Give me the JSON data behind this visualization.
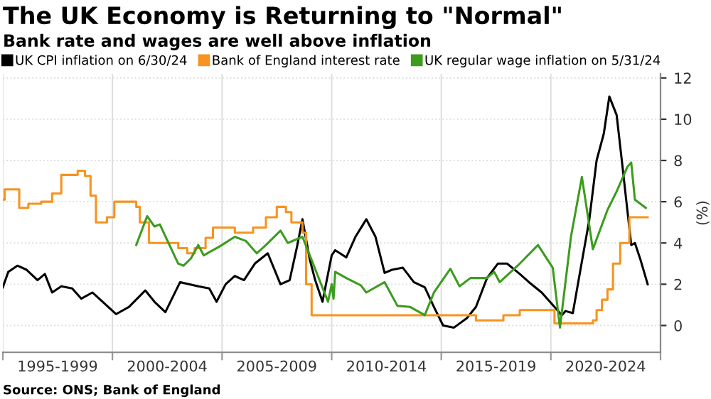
{
  "chart_data": {
    "type": "line",
    "title": "The UK Economy is Returning to \"Normal\"",
    "subtitle": "Bank rate and wages are well above inflation",
    "ylabel": "(%)",
    "legend": "top left",
    "grid": "xy",
    "annotations": [
      "Source: ONS; Bank of England"
    ],
    "xlim": [
      "1995-01",
      "2025-01"
    ],
    "ylim": [
      -1.3,
      12.2
    ],
    "yticks": [
      0,
      2,
      4,
      6,
      8,
      10,
      12
    ],
    "xticks": [
      {
        "value": "1995-01",
        "label": null
      },
      {
        "value": "1997-07",
        "label": "1995-1999"
      },
      {
        "value": "2000-01",
        "label": null
      },
      {
        "value": "2002-07",
        "label": "2000-2004"
      },
      {
        "value": "2005-01",
        "label": null
      },
      {
        "value": "2007-07",
        "label": "2005-2009"
      },
      {
        "value": "2010-01",
        "label": null
      },
      {
        "value": "2012-07",
        "label": "2010-2014"
      },
      {
        "value": "2015-01",
        "label": null
      },
      {
        "value": "2017-07",
        "label": "2015-2019"
      },
      {
        "value": "2020-01",
        "label": null
      },
      {
        "value": "2022-07",
        "label": "2020-2024"
      },
      {
        "value": "2025-01",
        "label": null
      }
    ],
    "series": [
      {
        "name": "UK CPI inflation on 6/30/24",
        "color": "#000000",
        "x": [
          "1995-01",
          "1995-04",
          "1995-09",
          "1996-02",
          "1996-08",
          "1996-12",
          "1997-04",
          "1997-09",
          "1998-03",
          "1998-08",
          "1999-02",
          "2000-03",
          "2000-10",
          "2001-07",
          "2001-12",
          "2002-06",
          "2003-02",
          "2003-12",
          "2004-06",
          "2004-10",
          "2005-03",
          "2005-08",
          "2006-01",
          "2006-07",
          "2007-02",
          "2007-09",
          "2008-02",
          "2008-06",
          "2008-09",
          "2009-01",
          "2009-04",
          "2009-08",
          "2010-01",
          "2010-03",
          "2010-09",
          "2011-02",
          "2011-08",
          "2012-01",
          "2012-06",
          "2012-10",
          "2013-04",
          "2013-10",
          "2014-04",
          "2014-09",
          "2015-02",
          "2015-08",
          "2016-03",
          "2016-08",
          "2017-02",
          "2017-08",
          "2018-01",
          "2018-08",
          "2019-01",
          "2019-08",
          "2020-03",
          "2020-07",
          "2020-09",
          "2021-01",
          "2021-04",
          "2021-10",
          "2022-02",
          "2022-06",
          "2022-09",
          "2023-01",
          "2023-04",
          "2023-09",
          "2023-11",
          "2024-02",
          "2024-06"
        ],
        "values": [
          1.85,
          2.6,
          2.9,
          2.7,
          2.2,
          2.5,
          1.6,
          1.9,
          1.8,
          1.3,
          1.6,
          0.55,
          0.9,
          1.7,
          1.15,
          0.65,
          2.1,
          1.9,
          1.8,
          1.15,
          2.0,
          2.4,
          2.2,
          3.0,
          3.5,
          2.0,
          2.2,
          3.8,
          5.15,
          3.2,
          2.2,
          1.15,
          3.4,
          3.65,
          3.3,
          4.3,
          5.15,
          4.3,
          2.55,
          2.7,
          2.8,
          2.1,
          1.85,
          0.9,
          0.0,
          -0.1,
          0.35,
          0.9,
          2.3,
          3.0,
          3.0,
          2.5,
          2.1,
          1.6,
          0.9,
          0.5,
          0.7,
          0.6,
          2.1,
          5.1,
          8.0,
          9.3,
          11.1,
          10.2,
          7.9,
          3.9,
          4.0,
          3.2,
          2.0
        ]
      },
      {
        "name": "Bank of England interest rate",
        "color": "#f7931e",
        "type": "step",
        "x": [
          "1995-01",
          "1995-02",
          "1995-10",
          "1996-03",
          "1996-10",
          "1997-04",
          "1997-09",
          "1998-06",
          "1998-10",
          "1999-01",
          "1999-04",
          "1999-10",
          "2000-02",
          "2001-02",
          "2001-04",
          "2001-09",
          "2003-01",
          "2003-06",
          "2003-10",
          "2004-04",
          "2004-08",
          "2005-08",
          "2006-06",
          "2007-01",
          "2007-07",
          "2007-12",
          "2008-03",
          "2008-09",
          "2008-11",
          "2009-02",
          "2016-08",
          "2017-11",
          "2018-08",
          "2020-03",
          "2021-12",
          "2022-02",
          "2022-05",
          "2022-08",
          "2022-11",
          "2023-03",
          "2023-08",
          "2024-06"
        ],
        "values": [
          6.1,
          6.6,
          5.7,
          5.9,
          6.0,
          6.4,
          7.3,
          7.5,
          7.25,
          6.3,
          5.0,
          5.25,
          6.0,
          5.75,
          5.0,
          4.0,
          3.75,
          3.5,
          3.75,
          4.25,
          4.75,
          4.5,
          4.75,
          5.25,
          5.75,
          5.5,
          5.0,
          4.5,
          2.0,
          0.5,
          0.25,
          0.5,
          0.75,
          0.1,
          0.25,
          0.75,
          1.25,
          1.75,
          3.0,
          4.0,
          5.25,
          5.25
        ]
      },
      {
        "name": "UK regular wage inflation on 5/31/24",
        "color": "#3c9c1e",
        "x": [
          "2001-02",
          "2001-08",
          "2001-12",
          "2002-03",
          "2003-01",
          "2003-04",
          "2003-08",
          "2003-12",
          "2004-03",
          "2004-12",
          "2005-08",
          "2006-02",
          "2006-08",
          "2007-01",
          "2007-09",
          "2008-01",
          "2008-09",
          "2009-01",
          "2009-11",
          "2010-01",
          "2010-02",
          "2010-03",
          "2010-09",
          "2011-05",
          "2011-08",
          "2012-06",
          "2013-01",
          "2013-08",
          "2014-04",
          "2014-09",
          "2015-06",
          "2015-11",
          "2016-05",
          "2017-02",
          "2017-06",
          "2017-09",
          "2018-08",
          "2019-06",
          "2020-02",
          "2020-06",
          "2020-12",
          "2021-06",
          "2021-12",
          "2022-08",
          "2023-01",
          "2023-07",
          "2023-09",
          "2023-11",
          "2024-05"
        ],
        "values": [
          3.9,
          5.3,
          4.8,
          4.9,
          3.0,
          2.9,
          3.25,
          3.9,
          3.4,
          3.85,
          4.3,
          4.1,
          3.5,
          3.9,
          4.6,
          4.0,
          4.3,
          3.4,
          1.15,
          2.0,
          1.3,
          2.6,
          2.3,
          1.95,
          1.6,
          2.1,
          0.95,
          0.9,
          0.5,
          1.6,
          2.75,
          1.9,
          2.3,
          2.3,
          2.6,
          2.1,
          3.0,
          3.9,
          2.8,
          -0.1,
          4.3,
          7.2,
          3.7,
          5.6,
          6.5,
          7.7,
          7.9,
          6.1,
          5.7
        ]
      }
    ]
  }
}
